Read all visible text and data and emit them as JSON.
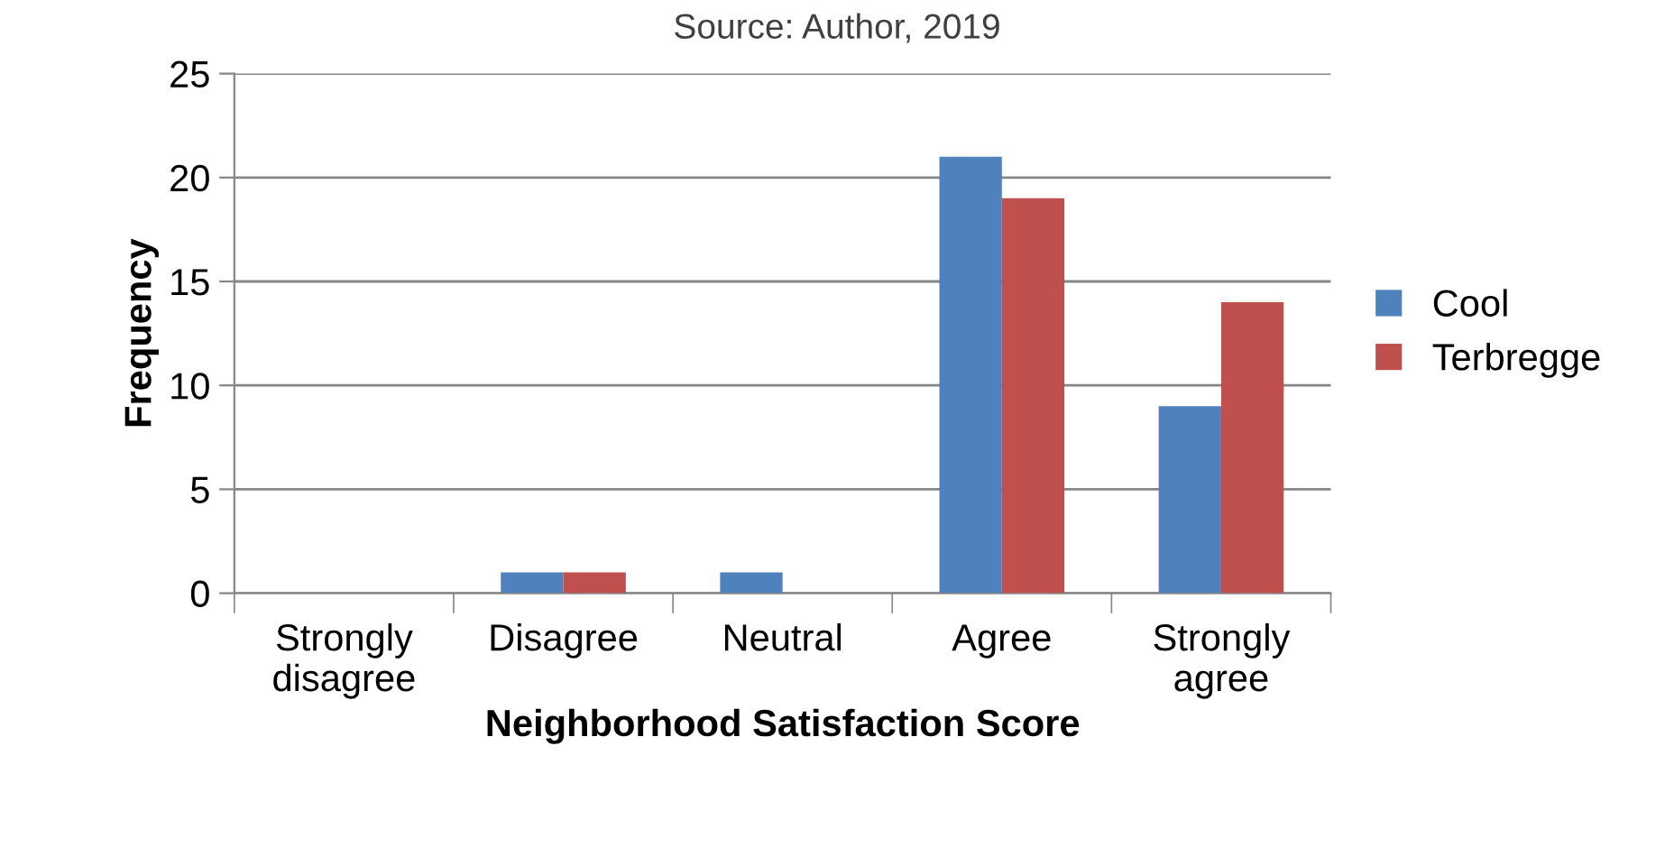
{
  "chart_data": {
    "type": "bar",
    "annotations": [
      "Source: Author, 2019"
    ],
    "xlabel": "Neighborhood Satisfaction Score",
    "ylabel": "Frequency",
    "categories": [
      "Strongly\ndisagree",
      "Disagree",
      "Neutral",
      "Agree",
      "Strongly\nagree"
    ],
    "series": [
      {
        "name": "Cool",
        "color": "#4f81bd",
        "values": [
          0,
          1,
          1,
          21,
          9
        ]
      },
      {
        "name": "Terbregge",
        "color": "#c0504d",
        "values": [
          0,
          1,
          0,
          19,
          14
        ]
      }
    ],
    "ylim": [
      0,
      25
    ],
    "yticks": [
      0,
      5,
      10,
      15,
      20,
      25
    ],
    "grid": "y",
    "legend": "right"
  }
}
